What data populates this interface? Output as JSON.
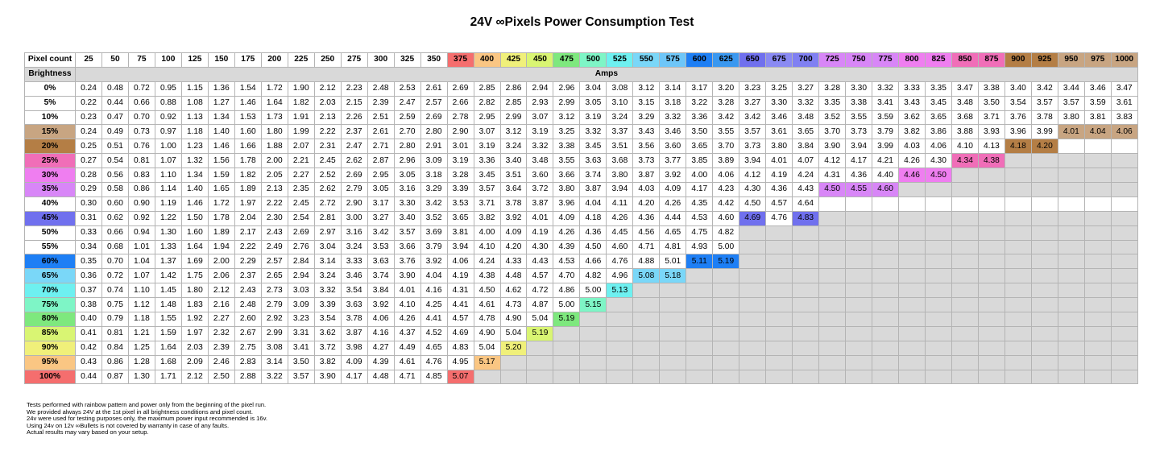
{
  "title": "24V ∞Pixels Power Consumption Test",
  "chart_data": {
    "type": "table",
    "corner_label": "Pixel count",
    "row_header_label": "Brightness",
    "unit_label": "Amps",
    "pixel_counts": [
      "25",
      "50",
      "75",
      "100",
      "125",
      "150",
      "175",
      "200",
      "225",
      "250",
      "275",
      "300",
      "325",
      "350",
      "375",
      "400",
      "425",
      "450",
      "475",
      "500",
      "525",
      "550",
      "575",
      "600",
      "625",
      "650",
      "675",
      "700",
      "725",
      "750",
      "775",
      "800",
      "825",
      "850",
      "875",
      "900",
      "925",
      "950",
      "975",
      "1000"
    ],
    "col_colors": [
      "#ffffff",
      "#ffffff",
      "#ffffff",
      "#ffffff",
      "#ffffff",
      "#ffffff",
      "#ffffff",
      "#ffffff",
      "#ffffff",
      "#ffffff",
      "#ffffff",
      "#ffffff",
      "#ffffff",
      "#ffffff",
      "#f56e6e",
      "#fac683",
      "#f0f07a",
      "#d9f573",
      "#7ee87e",
      "#7ef5c6",
      "#6ef0f0",
      "#7ad7f8",
      "#6ec6f8",
      "#1e7ff5",
      "#3a98f0",
      "#7070ee",
      "#8a8af3",
      "#8080f2",
      "#d886f7",
      "#d886f7",
      "#d886f7",
      "#ef7ef0",
      "#ef7ef0",
      "#f06eb8",
      "#f06eb8",
      "#b47e45",
      "#b47e45",
      "#c8a582",
      "#c8a582",
      "#c8a582"
    ],
    "rows": [
      {
        "label": "0%",
        "color": "#ffffff",
        "values": [
          "0.24",
          "0.48",
          "0.72",
          "0.95",
          "1.15",
          "1.36",
          "1.54",
          "1.72",
          "1.90",
          "2.12",
          "2.23",
          "2.48",
          "2.53",
          "2.61",
          "2.69",
          "2.85",
          "2.86",
          "2.94",
          "2.96",
          "3.04",
          "3.08",
          "3.12",
          "3.14",
          "3.17",
          "3.20",
          "3.23",
          "3.25",
          "3.27",
          "3.28",
          "3.30",
          "3.32",
          "3.33",
          "3.35",
          "3.47",
          "3.38",
          "3.40",
          "3.42",
          "3.44",
          "3.46",
          "3.47"
        ]
      },
      {
        "label": "5%",
        "color": "#ffffff",
        "values": [
          "0.22",
          "0.44",
          "0.66",
          "0.88",
          "1.08",
          "1.27",
          "1.46",
          "1.64",
          "1.82",
          "2.03",
          "2.15",
          "2.39",
          "2.47",
          "2.57",
          "2.66",
          "2.82",
          "2.85",
          "2.93",
          "2.99",
          "3.05",
          "3.10",
          "3.15",
          "3.18",
          "3.22",
          "3.28",
          "3.27",
          "3.30",
          "3.32",
          "3.35",
          "3.38",
          "3.41",
          "3.43",
          "3.45",
          "3.48",
          "3.50",
          "3.54",
          "3.57",
          "3.57",
          "3.59",
          "3.61"
        ]
      },
      {
        "label": "10%",
        "color": "#ffffff",
        "values": [
          "0.23",
          "0.47",
          "0.70",
          "0.92",
          "1.13",
          "1.34",
          "1.53",
          "1.73",
          "1.91",
          "2.13",
          "2.26",
          "2.51",
          "2.59",
          "2.69",
          "2.78",
          "2.95",
          "2.99",
          "3.07",
          "3.12",
          "3.19",
          "3.24",
          "3.29",
          "3.32",
          "3.36",
          "3.42",
          "3.42",
          "3.46",
          "3.48",
          "3.52",
          "3.55",
          "3.59",
          "3.62",
          "3.65",
          "3.68",
          "3.71",
          "3.76",
          "3.78",
          "3.80",
          "3.81",
          "3.83"
        ]
      },
      {
        "label": "15%",
        "color": "#c8a582",
        "values": [
          "0.24",
          "0.49",
          "0.73",
          "0.97",
          "1.18",
          "1.40",
          "1.60",
          "1.80",
          "1.99",
          "2.22",
          "2.37",
          "2.61",
          "2.70",
          "2.80",
          "2.90",
          "3.07",
          "3.12",
          "3.19",
          "3.25",
          "3.32",
          "3.37",
          "3.43",
          "3.46",
          "3.50",
          "3.55",
          "3.57",
          "3.61",
          "3.65",
          "3.70",
          "3.73",
          "3.79",
          "3.82",
          "3.86",
          "3.88",
          "3.93",
          "3.96",
          "3.99",
          "4.01",
          "4.04",
          "4.06"
        ]
      },
      {
        "label": "20%",
        "color": "#b47e45",
        "values": [
          "0.25",
          "0.51",
          "0.76",
          "1.00",
          "1.23",
          "1.46",
          "1.66",
          "1.88",
          "2.07",
          "2.31",
          "2.47",
          "2.71",
          "2.80",
          "2.91",
          "3.01",
          "3.19",
          "3.24",
          "3.32",
          "3.38",
          "3.45",
          "3.51",
          "3.56",
          "3.60",
          "3.65",
          "3.70",
          "3.73",
          "3.80",
          "3.84",
          "3.90",
          "3.94",
          "3.99",
          "4.03",
          "4.06",
          "4.10",
          "4.13",
          "4.18",
          "4.20",
          "",
          "",
          ""
        ]
      },
      {
        "label": "25%",
        "color": "#f06eb8",
        "values": [
          "0.27",
          "0.54",
          "0.81",
          "1.07",
          "1.32",
          "1.56",
          "1.78",
          "2.00",
          "2.21",
          "2.45",
          "2.62",
          "2.87",
          "2.96",
          "3.09",
          "3.19",
          "3.36",
          "3.40",
          "3.48",
          "3.55",
          "3.63",
          "3.68",
          "3.73",
          "3.77",
          "3.85",
          "3.89",
          "3.94",
          "4.01",
          "4.07",
          "4.12",
          "4.17",
          "4.21",
          "4.26",
          "4.30",
          "4.34",
          "4.38",
          "",
          "",
          "",
          "",
          ""
        ]
      },
      {
        "label": "30%",
        "color": "#ef7ef0",
        "values": [
          "0.28",
          "0.56",
          "0.83",
          "1.10",
          "1.34",
          "1.59",
          "1.82",
          "2.05",
          "2.27",
          "2.52",
          "2.69",
          "2.95",
          "3.05",
          "3.18",
          "3.28",
          "3.45",
          "3.51",
          "3.60",
          "3.66",
          "3.74",
          "3.80",
          "3.87",
          "3.92",
          "4.00",
          "4.06",
          "4.12",
          "4.19",
          "4.24",
          "4.31",
          "4.36",
          "4.40",
          "4.46",
          "4.50",
          "",
          "",
          "",
          "",
          "",
          "",
          ""
        ]
      },
      {
        "label": "35%",
        "color": "#d886f7",
        "values": [
          "0.29",
          "0.58",
          "0.86",
          "1.14",
          "1.40",
          "1.65",
          "1.89",
          "2.13",
          "2.35",
          "2.62",
          "2.79",
          "3.05",
          "3.16",
          "3.29",
          "3.39",
          "3.57",
          "3.64",
          "3.72",
          "3.80",
          "3.87",
          "3.94",
          "4.03",
          "4.09",
          "4.17",
          "4.23",
          "4.30",
          "4.36",
          "4.43",
          "4.50",
          "4.55",
          "4.60",
          "",
          "",
          "",
          "",
          "",
          "",
          "",
          "",
          ""
        ]
      },
      {
        "label": "40%",
        "color": "#ffffff",
        "values": [
          "0.30",
          "0.60",
          "0.90",
          "1.19",
          "1.46",
          "1.72",
          "1.97",
          "2.22",
          "2.45",
          "2.72",
          "2.90",
          "3.17",
          "3.30",
          "3.42",
          "3.53",
          "3.71",
          "3.78",
          "3.87",
          "3.96",
          "4.04",
          "4.11",
          "4.20",
          "4.26",
          "4.35",
          "4.42",
          "4.50",
          "4.57",
          "4.64",
          "",
          "",
          "",
          "",
          "",
          "",
          "",
          "",
          "",
          "",
          "",
          ""
        ]
      },
      {
        "label": "45%",
        "color": "#7070ee",
        "values": [
          "0.31",
          "0.62",
          "0.92",
          "1.22",
          "1.50",
          "1.78",
          "2.04",
          "2.30",
          "2.54",
          "2.81",
          "3.00",
          "3.27",
          "3.40",
          "3.52",
          "3.65",
          "3.82",
          "3.92",
          "4.01",
          "4.09",
          "4.18",
          "4.26",
          "4.36",
          "4.44",
          "4.53",
          "4.60",
          "4.69",
          "4.76",
          "4.83",
          "",
          "",
          "",
          "",
          "",
          "",
          "",
          "",
          "",
          "",
          "",
          ""
        ]
      },
      {
        "label": "50%",
        "color": "#ffffff",
        "values": [
          "0.33",
          "0.66",
          "0.94",
          "1.30",
          "1.60",
          "1.89",
          "2.17",
          "2.43",
          "2.69",
          "2.97",
          "3.16",
          "3.42",
          "3.57",
          "3.69",
          "3.81",
          "4.00",
          "4.09",
          "4.19",
          "4.26",
          "4.36",
          "4.45",
          "4.56",
          "4.65",
          "4.75",
          "4.82",
          "",
          "",
          "",
          "",
          "",
          "",
          "",
          "",
          "",
          "",
          "",
          "",
          "",
          "",
          ""
        ]
      },
      {
        "label": "55%",
        "color": "#ffffff",
        "values": [
          "0.34",
          "0.68",
          "1.01",
          "1.33",
          "1.64",
          "1.94",
          "2.22",
          "2.49",
          "2.76",
          "3.04",
          "3.24",
          "3.53",
          "3.66",
          "3.79",
          "3.94",
          "4.10",
          "4.20",
          "4.30",
          "4.39",
          "4.50",
          "4.60",
          "4.71",
          "4.81",
          "4.93",
          "5.00",
          "",
          "",
          "",
          "",
          "",
          "",
          "",
          "",
          "",
          "",
          "",
          "",
          "",
          "",
          ""
        ]
      },
      {
        "label": "60%",
        "color": "#1e7ff5",
        "values": [
          "0.35",
          "0.70",
          "1.04",
          "1.37",
          "1.69",
          "2.00",
          "2.29",
          "2.57",
          "2.84",
          "3.14",
          "3.33",
          "3.63",
          "3.76",
          "3.92",
          "4.06",
          "4.24",
          "4.33",
          "4.43",
          "4.53",
          "4.66",
          "4.76",
          "4.88",
          "5.01",
          "5.11",
          "5.19",
          "",
          "",
          "",
          "",
          "",
          "",
          "",
          "",
          "",
          "",
          "",
          "",
          "",
          "",
          ""
        ]
      },
      {
        "label": "65%",
        "color": "#7ad7f8",
        "values": [
          "0.36",
          "0.72",
          "1.07",
          "1.42",
          "1.75",
          "2.06",
          "2.37",
          "2.65",
          "2.94",
          "3.24",
          "3.46",
          "3.74",
          "3.90",
          "4.04",
          "4.19",
          "4.38",
          "4.48",
          "4.57",
          "4.70",
          "4.82",
          "4.96",
          "5.08",
          "5.18",
          "",
          "",
          "",
          "",
          "",
          "",
          "",
          "",
          "",
          "",
          "",
          "",
          "",
          "",
          "",
          "",
          ""
        ]
      },
      {
        "label": "70%",
        "color": "#6ef0f0",
        "values": [
          "0.37",
          "0.74",
          "1.10",
          "1.45",
          "1.80",
          "2.12",
          "2.43",
          "2.73",
          "3.03",
          "3.32",
          "3.54",
          "3.84",
          "4.01",
          "4.16",
          "4.31",
          "4.50",
          "4.62",
          "4.72",
          "4.86",
          "5.00",
          "5.13",
          "",
          "",
          "",
          "",
          "",
          "",
          "",
          "",
          "",
          "",
          "",
          "",
          "",
          "",
          "",
          "",
          "",
          "",
          ""
        ]
      },
      {
        "label": "75%",
        "color": "#7ef5c6",
        "values": [
          "0.38",
          "0.75",
          "1.12",
          "1.48",
          "1.83",
          "2.16",
          "2.48",
          "2.79",
          "3.09",
          "3.39",
          "3.63",
          "3.92",
          "4.10",
          "4.25",
          "4.41",
          "4.61",
          "4.73",
          "4.87",
          "5.00",
          "5.15",
          "",
          "",
          "",
          "",
          "",
          "",
          "",
          "",
          "",
          "",
          "",
          "",
          "",
          "",
          "",
          "",
          "",
          "",
          "",
          ""
        ]
      },
      {
        "label": "80%",
        "color": "#7ee87e",
        "values": [
          "0.40",
          "0.79",
          "1.18",
          "1.55",
          "1.92",
          "2.27",
          "2.60",
          "2.92",
          "3.23",
          "3.54",
          "3.78",
          "4.06",
          "4.26",
          "4.41",
          "4.57",
          "4.78",
          "4.90",
          "5.04",
          "5.19",
          "",
          "",
          "",
          "",
          "",
          "",
          "",
          "",
          "",
          "",
          "",
          "",
          "",
          "",
          "",
          "",
          "",
          "",
          "",
          "",
          ""
        ]
      },
      {
        "label": "85%",
        "color": "#d9f573",
        "values": [
          "0.41",
          "0.81",
          "1.21",
          "1.59",
          "1.97",
          "2.32",
          "2.67",
          "2.99",
          "3.31",
          "3.62",
          "3.87",
          "4.16",
          "4.37",
          "4.52",
          "4.69",
          "4.90",
          "5.04",
          "5.19",
          "",
          "",
          "",
          "",
          "",
          "",
          "",
          "",
          "",
          "",
          "",
          "",
          "",
          "",
          "",
          "",
          "",
          "",
          "",
          "",
          "",
          ""
        ]
      },
      {
        "label": "90%",
        "color": "#f0f07a",
        "values": [
          "0.42",
          "0.84",
          "1.25",
          "1.64",
          "2.03",
          "2.39",
          "2.75",
          "3.08",
          "3.41",
          "3.72",
          "3.98",
          "4.27",
          "4.49",
          "4.65",
          "4.83",
          "5.04",
          "5.20",
          "",
          "",
          "",
          "",
          "",
          "",
          "",
          "",
          "",
          "",
          "",
          "",
          "",
          "",
          "",
          "",
          "",
          "",
          "",
          "",
          "",
          "",
          ""
        ]
      },
      {
        "label": "95%",
        "color": "#fac683",
        "values": [
          "0.43",
          "0.86",
          "1.28",
          "1.68",
          "2.09",
          "2.46",
          "2.83",
          "3.14",
          "3.50",
          "3.82",
          "4.09",
          "4.39",
          "4.61",
          "4.76",
          "4.95",
          "5.17",
          "",
          "",
          "",
          "",
          "",
          "",
          "",
          "",
          "",
          "",
          "",
          "",
          "",
          "",
          "",
          "",
          "",
          "",
          "",
          "",
          "",
          "",
          "",
          ""
        ]
      },
      {
        "label": "100%",
        "color": "#f56e6e",
        "values": [
          "0.44",
          "0.87",
          "1.30",
          "1.71",
          "2.12",
          "2.50",
          "2.88",
          "3.22",
          "3.57",
          "3.90",
          "4.17",
          "4.48",
          "4.71",
          "4.85",
          "5.07",
          "",
          "",
          "",
          "",
          "",
          "",
          "",
          "",
          "",
          "",
          "",
          "",
          "",
          "",
          "",
          "",
          "",
          "",
          "",
          "",
          "",
          "",
          "",
          "",
          ""
        ]
      }
    ]
  },
  "notes": [
    "Tests performed with rainbow pattern and power only from the beginning of the pixel run.",
    "We provided always 24V at the 1st pixel in all brightness conditions and pixel count.",
    "24v were used for testing purposes only, the maximum power input recommended is 16v.",
    "Using 24v on 12v ∞Bullets is not covered by warranty in case of any faults.",
    "Actual results may vary based on your setup."
  ]
}
